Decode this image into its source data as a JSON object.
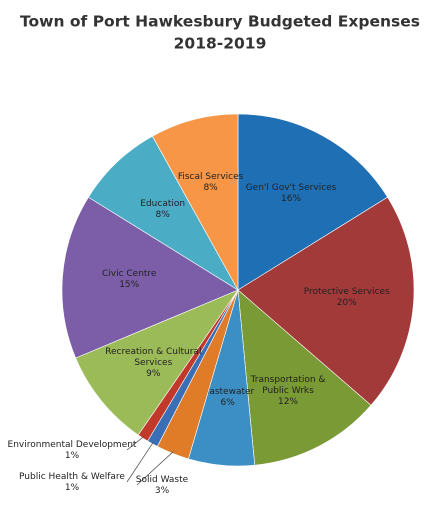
{
  "chart_data": {
    "type": "pie",
    "title": "Town of Port Hawkesbury Budgeted Expenses",
    "subtitle": "2018-2019",
    "categories": [
      "Gen'l Gov't Services",
      "Protective Services",
      "Transportation & Public Wrks",
      "Wastewater",
      "Solid Waste",
      "Public Health & Welfare",
      "Environmental Development",
      "Recreation & Cultural Services",
      "Civic Centre",
      "Education",
      "Fiscal Services"
    ],
    "values": [
      16,
      20,
      12,
      6,
      3,
      1,
      1,
      9,
      15,
      8,
      8
    ],
    "value_labels": [
      "16%",
      "20%",
      "12%",
      "6%",
      "3%",
      "1%",
      "1%",
      "9%",
      "15%",
      "8%",
      "8%"
    ],
    "colors": [
      "#1f6fb5",
      "#a33a3a",
      "#7a9a35",
      "#3b8fc4",
      "#e07b28",
      "#3a6fb5",
      "#c0392b",
      "#9bbb59",
      "#7b5ea7",
      "#4bacc6",
      "#f79646"
    ]
  }
}
